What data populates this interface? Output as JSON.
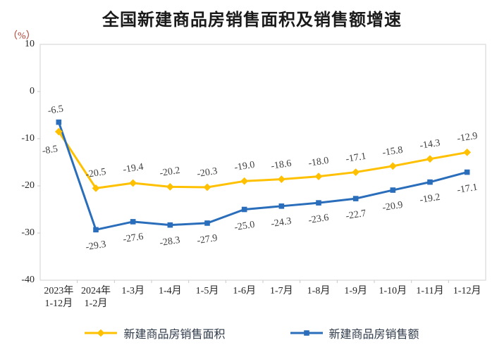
{
  "title": "全国新建商品房销售面积及销售额增速",
  "unit_label": "（%）",
  "colors": {
    "title_text": "#1a1a1a",
    "unit_label_text": "#b03a2e",
    "axis_text": "#262626",
    "data_label_text": "#3f3f3f",
    "plot_border": "#d9d9d9",
    "tick_mark": "#c9c9c9",
    "series_area": "#ffc000",
    "series_amount": "#2a6ebb"
  },
  "chart_data": {
    "type": "line",
    "title": "全国新建商品房销售面积及销售额增速",
    "ylabel": "（%）",
    "xlabel": "",
    "ylim": [
      -40,
      10
    ],
    "y_ticks": [
      10,
      0,
      -10,
      -20,
      -30,
      -40
    ],
    "grid": false,
    "legend_position": "bottom",
    "categories": [
      "2023年\n1-12月",
      "2024年\n1-2月",
      "1-3月",
      "1-4月",
      "1-5月",
      "1-6月",
      "1-7月",
      "1-8月",
      "1-9月",
      "1-10月",
      "1-11月",
      "1-12月"
    ],
    "series": [
      {
        "name": "新建商品房销售面积",
        "color": "#ffc000",
        "marker": "diamond",
        "label_side": "above",
        "first_point_label_side": "below",
        "values": [
          -8.5,
          -20.5,
          -19.4,
          -20.2,
          -20.3,
          -19.0,
          -18.6,
          -18.0,
          -17.1,
          -15.8,
          -14.3,
          -12.9
        ],
        "labels": [
          "-8.5",
          "-20.5",
          "-19.4",
          "-20.2",
          "-20.3",
          "-19.0",
          "-18.6",
          "-18.0",
          "-17.1",
          "-15.8",
          "-14.3",
          "-12.9"
        ]
      },
      {
        "name": "新建商品房销售额",
        "color": "#2a6ebb",
        "marker": "square",
        "label_side": "below",
        "first_point_label_side": "above",
        "values": [
          -6.5,
          -29.3,
          -27.6,
          -28.3,
          -27.9,
          -25.0,
          -24.3,
          -23.6,
          -22.7,
          -20.9,
          -19.2,
          -17.1
        ],
        "labels": [
          "-6.5",
          "-29.3",
          "-27.6",
          "-28.3",
          "-27.9",
          "-25.0",
          "-24.3",
          "-23.6",
          "-22.7",
          "-20.9",
          "-19.2",
          "-17.1"
        ]
      }
    ]
  }
}
